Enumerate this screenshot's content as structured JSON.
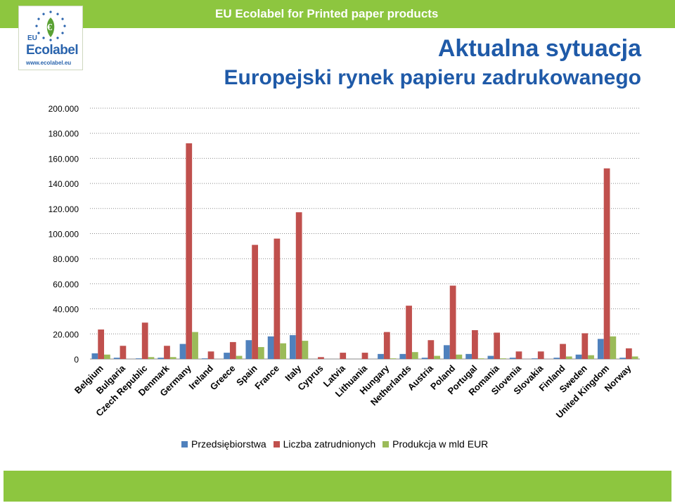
{
  "header": {
    "title": "EU Ecolabel for Printed paper products",
    "bar_color": "#8dc63f"
  },
  "logo": {
    "eu_text": "EU",
    "brand_text": "Ecolabel",
    "url_text": "www.ecolabel.eu"
  },
  "slide": {
    "title": "Aktualna sytuacja",
    "subtitle": "Europejski rynek papieru zadrukowanego",
    "title_color": "#1f5aa8"
  },
  "chart_data": {
    "type": "bar",
    "categories": [
      "Belgium",
      "Bulgaria",
      "Czech Republic",
      "Denmark",
      "Germany",
      "Ireland",
      "Greece",
      "Spain",
      "France",
      "Italy",
      "Cyprus",
      "Latvia",
      "Lithuania",
      "Hungary",
      "Netherlands",
      "Austria",
      "Poland",
      "Portugal",
      "Romania",
      "Slovenia",
      "Slovakia",
      "Finland",
      "Sweden",
      "United Kingdom",
      "Norway"
    ],
    "series": [
      {
        "name": "Przedsiębiorstwa",
        "color": "#4f81bd",
        "values": [
          4500,
          1000,
          500,
          1000,
          12000,
          500,
          5000,
          15000,
          18000,
          19000,
          0,
          0,
          0,
          4000,
          4000,
          1000,
          11000,
          4000,
          2500,
          1000,
          500,
          1000,
          3500,
          16000,
          1000
        ]
      },
      {
        "name": "Liczba zatrudnionych",
        "color": "#c0504d",
        "values": [
          23500,
          10500,
          29000,
          10500,
          172000,
          6000,
          13500,
          91000,
          96000,
          117000,
          1500,
          5000,
          5000,
          21500,
          42500,
          15000,
          58500,
          23000,
          21000,
          6000,
          6000,
          12000,
          20500,
          152000,
          8500
        ]
      },
      {
        "name": "Produkcja w mld EUR",
        "color": "#9bbb59",
        "values": [
          3500,
          0,
          1500,
          1500,
          21500,
          0,
          2500,
          9500,
          12500,
          14500,
          0,
          0,
          0,
          500,
          5500,
          2500,
          3500,
          500,
          500,
          0,
          0,
          2000,
          3000,
          18000,
          2000
        ]
      }
    ],
    "y_ticks": [
      "0",
      "20.000",
      "40.000",
      "60.000",
      "80.000",
      "100.000",
      "120.000",
      "140.000",
      "160.000",
      "180.000",
      "200.000"
    ],
    "ylim": [
      0,
      200000
    ],
    "grid": true,
    "legend_position": "bottom"
  }
}
